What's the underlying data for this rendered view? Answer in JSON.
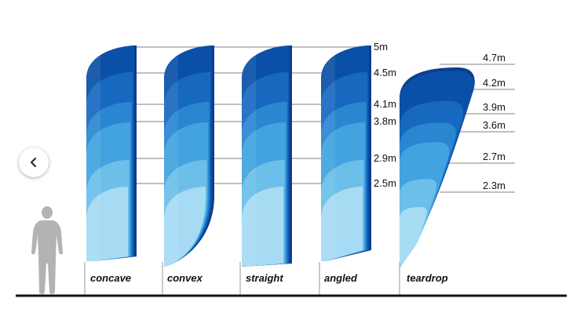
{
  "colors": {
    "bands": [
      "#0a50a8",
      "#1769bf",
      "#2b86d2",
      "#42a3e0",
      "#6cbfe9",
      "#a6dbf3"
    ],
    "edge": "#0a3f8c",
    "person": "#b3b3b3",
    "lines": "#9a9a9a",
    "ground": "#111111"
  },
  "icons": {
    "back": "chevron-left-icon",
    "person": "person-silhouette-icon"
  },
  "flags": [
    {
      "id": "concave",
      "name": "concave"
    },
    {
      "id": "convex",
      "name": "convex"
    },
    {
      "id": "straight",
      "name": "straight"
    },
    {
      "id": "angled",
      "name": "angled"
    },
    {
      "id": "teardrop",
      "name": "teardrop"
    }
  ],
  "heights_main": [
    {
      "value": 5,
      "label": "5m"
    },
    {
      "value": 4.5,
      "label": "4.5m"
    },
    {
      "value": 4.1,
      "label": "4.1m"
    },
    {
      "value": 3.8,
      "label": "3.8m"
    },
    {
      "value": 2.9,
      "label": "2.9m"
    },
    {
      "value": 2.5,
      "label": "2.5m"
    }
  ],
  "heights_teardrop": [
    {
      "value": 4.7,
      "label": "4.7m"
    },
    {
      "value": 4.2,
      "label": "4.2m"
    },
    {
      "value": 3.9,
      "label": "3.9m"
    },
    {
      "value": 3.6,
      "label": "3.6m"
    },
    {
      "value": 2.7,
      "label": "2.7m"
    },
    {
      "value": 2.3,
      "label": "2.3m"
    }
  ]
}
